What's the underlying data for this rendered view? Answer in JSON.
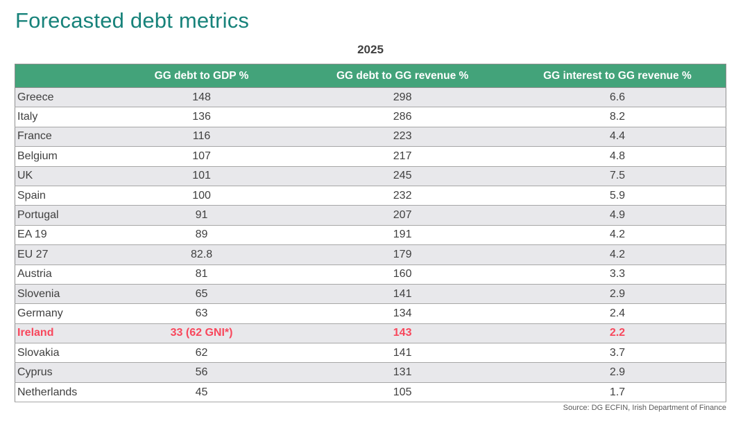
{
  "title": "Forecasted debt metrics",
  "year_label": "2025",
  "source": "Source: DG ECFIN, Irish Department of Finance",
  "colors": {
    "title_teal": "#17827A",
    "header_green": "#43A37A",
    "highlight_red": "#F8475C",
    "alt_row_gray": "#E8E8EB",
    "body_text": "#3F3F3F",
    "row_border": "#A6A6A6"
  },
  "chart_data": {
    "type": "table",
    "title": "Forecasted debt metrics",
    "subtitle": "2025",
    "columns": [
      "",
      "GG debt to GDP %",
      "GG debt to GG revenue %",
      "GG interest to GG revenue %"
    ],
    "rows": [
      [
        "Greece",
        "148",
        "298",
        "6.6"
      ],
      [
        "Italy",
        "136",
        "286",
        "8.2"
      ],
      [
        "France",
        "116",
        "223",
        "4.4"
      ],
      [
        "Belgium",
        "107",
        "217",
        "4.8"
      ],
      [
        "UK",
        "101",
        "245",
        "7.5"
      ],
      [
        "Spain",
        "100",
        "232",
        "5.9"
      ],
      [
        "Portugal",
        "91",
        "207",
        "4.9"
      ],
      [
        "EA 19",
        "89",
        "191",
        "4.2"
      ],
      [
        "EU 27",
        "82.8",
        "179",
        "4.2"
      ],
      [
        "Austria",
        "81",
        "160",
        "3.3"
      ],
      [
        "Slovenia",
        "65",
        "141",
        "2.9"
      ],
      [
        "Germany",
        "63",
        "134",
        "2.4"
      ],
      [
        "Ireland",
        "33 (62 GNI*)",
        "143",
        "2.2"
      ],
      [
        "Slovakia",
        "62",
        "141",
        "3.7"
      ],
      [
        "Cyprus",
        "56",
        "131",
        "2.9"
      ],
      [
        "Netherlands",
        "45",
        "105",
        "1.7"
      ]
    ],
    "highlighted_row": "Ireland",
    "layout_hints": {
      "striped": true,
      "header_background": "green",
      "value_alignment": "center"
    },
    "source": "Source: DG ECFIN, Irish Department of Finance"
  }
}
